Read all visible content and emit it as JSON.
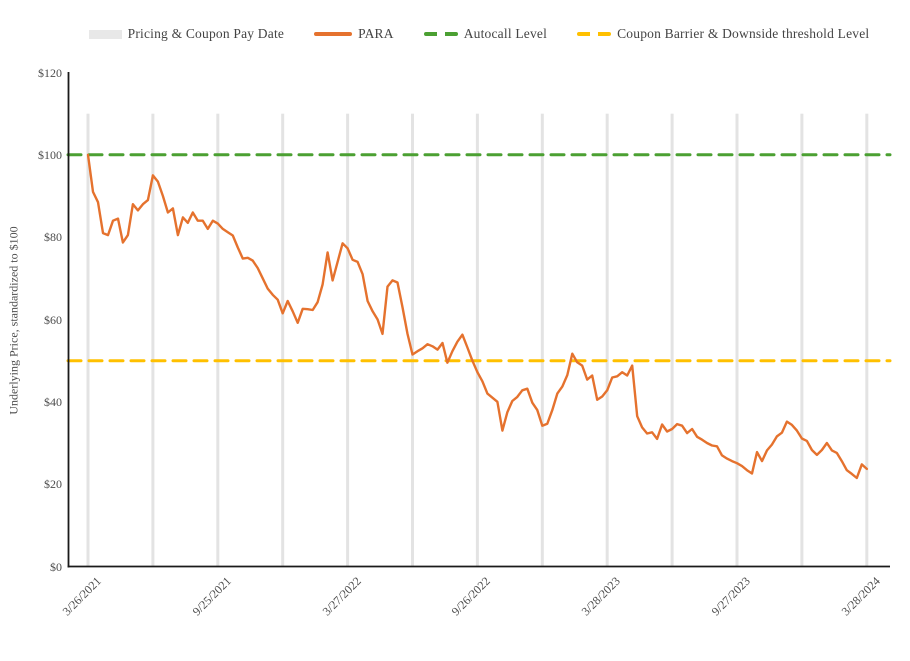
{
  "page": {
    "background": "#FFFFFF"
  },
  "legend": {
    "items": [
      {
        "label": "Pricing & Coupon Pay Date",
        "swatch": "bar",
        "color": "#E8E8E8"
      },
      {
        "label": "PARA",
        "swatch": "solid-line",
        "color": "#E5722E"
      },
      {
        "label": "Autocall Level",
        "swatch": "dashed-line",
        "color": "#4BA032"
      },
      {
        "label": "Coupon Barrier & Downside threshold Level",
        "swatch": "dashed-line",
        "color": "#FFC000"
      }
    ]
  },
  "chart_data": {
    "type": "line",
    "title": "",
    "ylabel": "Underlying Price, standardized to $100",
    "ylim": [
      0,
      120
    ],
    "y_ticks": [
      {
        "value": 0,
        "label": "$0"
      },
      {
        "value": 20,
        "label": "$20"
      },
      {
        "value": 40,
        "label": "$40"
      },
      {
        "value": 60,
        "label": "$60"
      },
      {
        "value": 80,
        "label": "$80"
      },
      {
        "value": 100,
        "label": "$100"
      },
      {
        "value": 120,
        "label": "$120"
      }
    ],
    "x_tick_labels": [
      "3/26/2021",
      "9/25/2021",
      "3/27/2022",
      "9/26/2022",
      "3/28/2023",
      "9/27/2023",
      "3/28/2024"
    ],
    "pay_date_gridlines": {
      "count": 13,
      "label_every": 2,
      "span_values": [
        0,
        110
      ],
      "color": "#E3E3E3"
    },
    "levels": [
      {
        "name": "Autocall Level",
        "value": 100,
        "color": "#4BA032",
        "style": "dashed"
      },
      {
        "name": "Coupon Barrier & Downside threshold Level",
        "value": 50,
        "color": "#FFC000",
        "style": "dashed"
      }
    ],
    "series": [
      {
        "name": "PARA",
        "color": "#E5722E",
        "sampling": "weekly",
        "x_range_labels": [
          "3/26/2021",
          "3/28/2024"
        ],
        "values": [
          100,
          91,
          88.5,
          81,
          80.5,
          84,
          84.5,
          78.7,
          80.5,
          88,
          86.5,
          88,
          89,
          95,
          93.5,
          90,
          86,
          87,
          80.5,
          84.8,
          83.5,
          86,
          84,
          84,
          82,
          84,
          83.3,
          82,
          81.2,
          80.4,
          77.5,
          74.8,
          75,
          74.3,
          72.5,
          70,
          67.5,
          66,
          64.8,
          61.5,
          64.5,
          62,
          59.2,
          62.6,
          62.5,
          62.3,
          64.2,
          68.5,
          76.3,
          69.5,
          74,
          78.5,
          77.3,
          74.5,
          74,
          71,
          64.5,
          62,
          60,
          56.5,
          68,
          69.5,
          69,
          63,
          56.5,
          51.5,
          52.3,
          53,
          54,
          53.5,
          52.7,
          54.3,
          49.5,
          52.3,
          54.6,
          56.3,
          53.2,
          50,
          47.2,
          45,
          42,
          41,
          40,
          33,
          37.5,
          40.2,
          41.2,
          42.8,
          43.2,
          39.8,
          38,
          34.2,
          34.7,
          38,
          42,
          43.7,
          46.5,
          51.7,
          49.6,
          48.8,
          45.4,
          46.4,
          40.5,
          41.3,
          42.8,
          45.9,
          46.2,
          47.2,
          46.4,
          48.8,
          36.5,
          33.8,
          32.3,
          32.6,
          31,
          34.5,
          32.8,
          33.4,
          34.6,
          34.2,
          32.4,
          33.4,
          31.5,
          30.8,
          30,
          29.4,
          29.2,
          27,
          26.2,
          25.6,
          25.1,
          24.4,
          23.4,
          22.6,
          27.8,
          25.6,
          28.2,
          29.6,
          31.6,
          32.5,
          35.2,
          34.4,
          33,
          31.1,
          30.5,
          28.3,
          27.1,
          28.3,
          30,
          28.2,
          27.6,
          25.6,
          23.4,
          22.5,
          21.5,
          24.8,
          23.7
        ]
      }
    ],
    "grid": "vertical-pay-date-bars",
    "legend_position": "top-center",
    "axis_color": "#1A1A1A",
    "tick_text_color": "#4D4D4D"
  }
}
